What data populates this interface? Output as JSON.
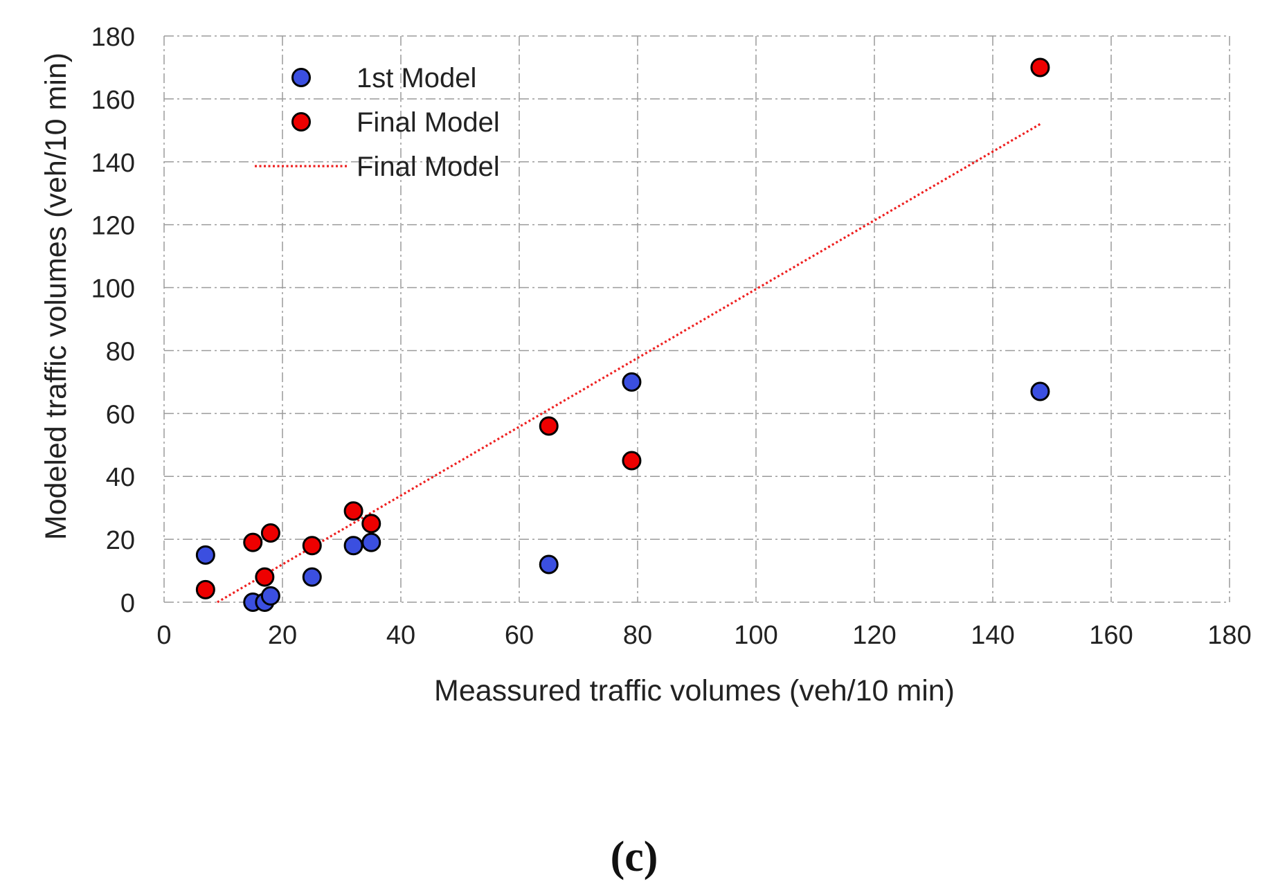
{
  "chart_data": {
    "type": "scatter",
    "xlabel": "Meassured traffic volumes (veh/10 min)",
    "ylabel": "Modeled traffic volumes (veh/10 min)",
    "xlim": [
      0,
      180
    ],
    "ylim": [
      0,
      180
    ],
    "xticks": [
      0,
      20,
      40,
      60,
      80,
      100,
      120,
      140,
      160,
      180
    ],
    "yticks": [
      0,
      20,
      40,
      60,
      80,
      100,
      120,
      140,
      160,
      180
    ],
    "grid": true,
    "legend_position": "top-left",
    "panel_label": "(c)",
    "series": [
      {
        "name": "1st Model",
        "kind": "scatter",
        "color": "#3b4fe0",
        "x": [
          7,
          15,
          17,
          18,
          25,
          32,
          35,
          65,
          79,
          148
        ],
        "y": [
          15,
          0,
          0,
          2,
          8,
          18,
          19,
          12,
          70,
          67
        ]
      },
      {
        "name": "Final Model",
        "kind": "scatter",
        "color": "#ee0000",
        "x": [
          7,
          15,
          17,
          18,
          25,
          32,
          35,
          65,
          79,
          148
        ],
        "y": [
          4,
          19,
          8,
          22,
          18,
          29,
          25,
          56,
          45,
          170
        ]
      },
      {
        "name": "Final Model",
        "kind": "trendline",
        "color": "#ee2020",
        "x": [
          9,
          148
        ],
        "y": [
          0,
          152
        ]
      }
    ]
  }
}
